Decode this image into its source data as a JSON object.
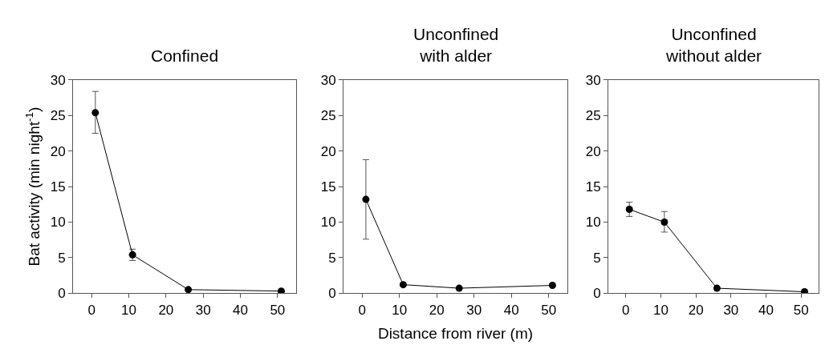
{
  "chart_data": [
    {
      "type": "line",
      "title": "Confined",
      "ylabel": "Bat activity (min night$^{-1}$)",
      "x": [
        1,
        11,
        26,
        51
      ],
      "marker": "circle",
      "line_style": "solid",
      "series": [
        {
          "color": "#000000",
          "values": [
            25.4,
            5.4,
            0.5,
            0.3
          ],
          "errors": [
            [
              22.5,
              28.4
            ],
            [
              4.6,
              6.2
            ],
            null,
            null
          ]
        }
      ],
      "xlim": [
        -5,
        55
      ],
      "xticks": [
        0,
        10,
        20,
        30,
        40,
        50
      ],
      "ylim": [
        0,
        30
      ],
      "yticks": [
        0,
        5,
        10,
        15,
        20,
        25,
        30
      ]
    },
    {
      "type": "line",
      "title": "Unconfined\nwith alder",
      "xlabel": "Distance from river (m)",
      "x": [
        1,
        11,
        26,
        51
      ],
      "marker": "circle",
      "line_style": "solid",
      "series": [
        {
          "color": "#000000",
          "values": [
            13.2,
            1.2,
            0.7,
            1.1
          ],
          "errors": [
            [
              7.6,
              18.8
            ],
            null,
            null,
            null
          ]
        }
      ],
      "xlim": [
        -5,
        55
      ],
      "xticks": [
        0,
        10,
        20,
        30,
        40,
        50
      ],
      "ylim": [
        0,
        30
      ],
      "yticks": [
        0,
        5,
        10,
        15,
        20,
        25,
        30
      ]
    },
    {
      "type": "line",
      "title": "Unconfined\nwithout alder",
      "x": [
        1,
        11,
        26,
        51
      ],
      "marker": "circle",
      "line_style": "solid",
      "series": [
        {
          "color": "#000000",
          "values": [
            11.8,
            10.0,
            0.7,
            0.2
          ],
          "errors": [
            [
              10.8,
              12.8
            ],
            [
              8.6,
              11.5
            ],
            null,
            null
          ]
        }
      ],
      "xlim": [
        -5,
        55
      ],
      "xticks": [
        0,
        10,
        20,
        30,
        40,
        50
      ],
      "ylim": [
        0,
        30
      ],
      "yticks": [
        0,
        5,
        10,
        15,
        20,
        25,
        30
      ]
    }
  ]
}
